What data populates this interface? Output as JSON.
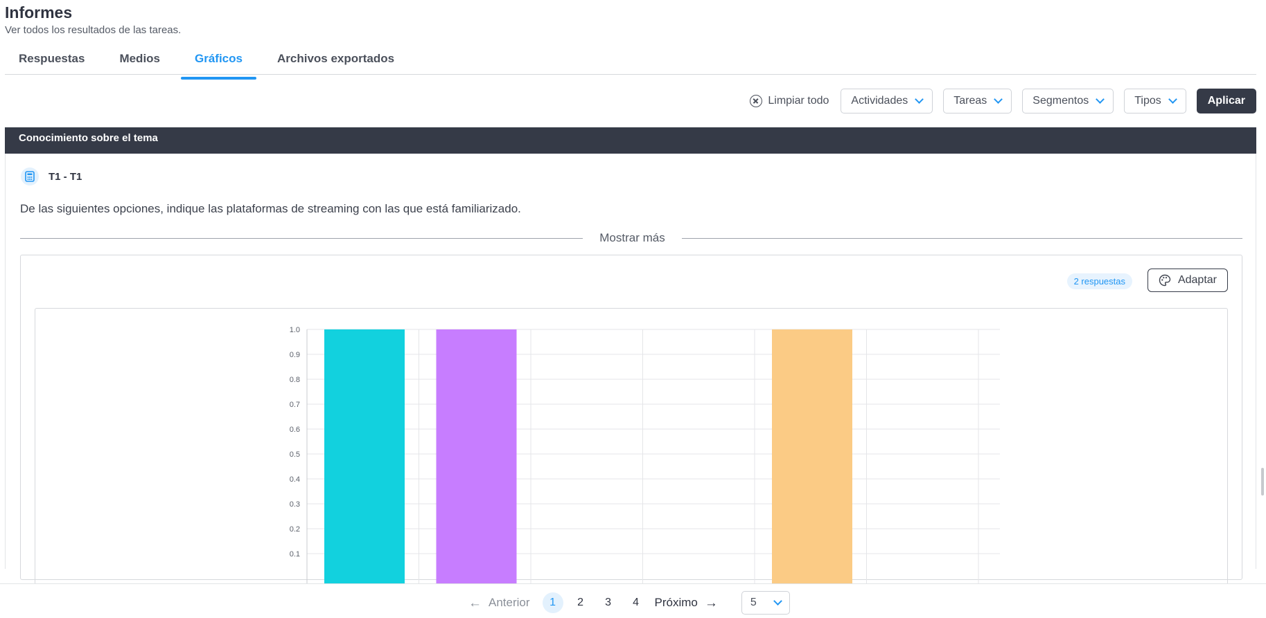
{
  "page": {
    "title": "Informes",
    "subtitle": "Ver todos los resultados de las tareas."
  },
  "tabs": [
    {
      "label": "Respuestas",
      "active": false
    },
    {
      "label": "Medios",
      "active": false
    },
    {
      "label": "Gráficos",
      "active": true
    },
    {
      "label": "Archivos exportados",
      "active": false
    }
  ],
  "filters": {
    "clear_all": "Limpiar todo",
    "activities": "Actividades",
    "tasks": "Tareas",
    "segments": "Segmentos",
    "types": "Tipos",
    "apply": "Aplicar"
  },
  "section": {
    "title": "Conocimiento sobre el tema",
    "task_label": "T1 - T1",
    "question": "De las siguientes opciones, indique las plataformas de streaming con las que está familiarizado.",
    "show_more": "Mostrar más",
    "responses_badge": "2 respuestas",
    "adapt_button": "Adaptar"
  },
  "chart_data": {
    "type": "bar",
    "categories": [
      "",
      "",
      "",
      "",
      "",
      ""
    ],
    "values": [
      1.0,
      1.0,
      0,
      0,
      1.0,
      0
    ],
    "colors": [
      "#12d1de",
      "#c77dff",
      "#12d1de",
      "#12d1de",
      "#fbcb85",
      "#12d1de"
    ],
    "y_ticks": [
      "0.1",
      "0.2",
      "0.3",
      "0.4",
      "0.5",
      "0.6",
      "0.7",
      "0.8",
      "0.9",
      "1.0"
    ],
    "ylim": [
      0,
      1.0
    ],
    "grid": true
  },
  "pagination": {
    "prev": "Anterior",
    "next": "Próximo",
    "pages": [
      "1",
      "2",
      "3",
      "4"
    ],
    "current": "1",
    "per_page": "5"
  },
  "colors": {
    "accent": "#2196f3",
    "header_dark": "#353a47"
  }
}
